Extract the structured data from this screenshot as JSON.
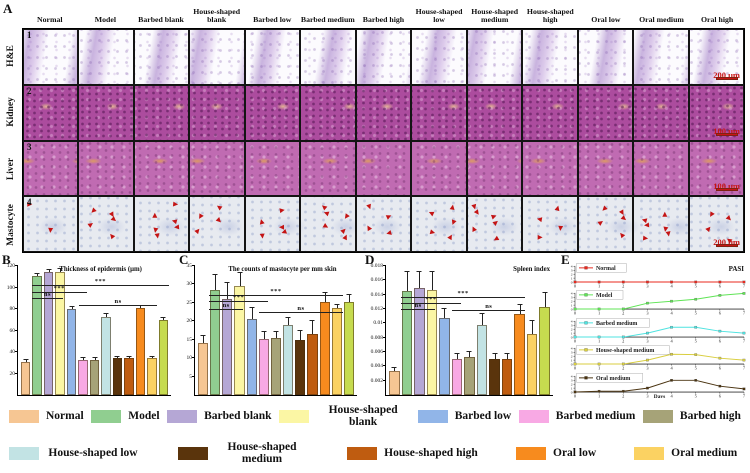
{
  "panelA": {
    "label": "A",
    "columns": [
      "Normal",
      "Model",
      "Barbed blank",
      "House-shaped blank",
      "Barbed low",
      "Barbed medium",
      "Barbed high",
      "House-shaped low",
      "House-shaped medium",
      "House-shaped high",
      "Oral low",
      "Oral medium",
      "Oral high"
    ],
    "rows": [
      {
        "number": "1",
        "label": "H&E",
        "scale_bar": "200 μm",
        "stain": "he"
      },
      {
        "number": "2",
        "label": "Kidney",
        "scale_bar": "100 μm",
        "stain": "kidney"
      },
      {
        "number": "3",
        "label": "Liver",
        "scale_bar": "100 μm",
        "stain": "liver"
      },
      {
        "number": "4",
        "label": "Mastocyte",
        "scale_bar": "200 μm",
        "stain": "mastocyte"
      }
    ]
  },
  "groups": [
    {
      "label": "Normal",
      "color": "#F6C693"
    },
    {
      "label": "Model",
      "color": "#90CE90"
    },
    {
      "label": "Barbed blank",
      "color": "#B5A7D5"
    },
    {
      "label": "House-shaped blank",
      "color": "#FBF6A4"
    },
    {
      "label": "Barbed low",
      "color": "#91B5E8"
    },
    {
      "label": "Barbed medium",
      "color": "#F8A9E4"
    },
    {
      "label": "Barbed high",
      "color": "#A6A378"
    },
    {
      "label": "House-shaped low",
      "color": "#C2E3E4"
    },
    {
      "label": "House-shaped medium",
      "color": "#5A340C"
    },
    {
      "label": "House-shaped high",
      "color": "#BF5C10"
    },
    {
      "label": "Oral low",
      "color": "#F78B1E"
    },
    {
      "label": "Oral medium",
      "color": "#FBD262"
    },
    {
      "label": "Oral high",
      "color": "#C6DB4F"
    }
  ],
  "chart_data": [
    {
      "panel": "B",
      "type": "bar",
      "title": "Thickness of epidermis (μm)",
      "categories": [
        "Normal",
        "Model",
        "Barbed blank",
        "House-shaped blank",
        "Barbed low",
        "Barbed medium",
        "Barbed high",
        "House-shaped low",
        "House-shaped medium",
        "House-shaped high",
        "Oral low",
        "Oral medium",
        "Oral high"
      ],
      "values": [
        31,
        111,
        114,
        114,
        80,
        33,
        33,
        73,
        34,
        34,
        81,
        34,
        70
      ],
      "errors": [
        1.5,
        2,
        2,
        3,
        1.5,
        1.5,
        1.5,
        2,
        1.5,
        1.5,
        2,
        1.5,
        1.5
      ],
      "ylim": [
        0,
        120
      ],
      "yticks": [
        "20",
        "40",
        "60",
        "80",
        "100",
        "120"
      ],
      "significance": [
        {
          "label": "***",
          "from": 2,
          "to": 13,
          "at": 101
        },
        {
          "label": "***",
          "from": 2,
          "to": 6,
          "at": 95
        },
        {
          "label": "ns",
          "from": 2,
          "to": 4,
          "at": 89
        },
        {
          "label": "ns",
          "from": 6,
          "to": 12,
          "at": 83
        }
      ]
    },
    {
      "panel": "C",
      "type": "bar",
      "title": "The counts of mastocyte per mm skin",
      "categories": [
        "Normal",
        "Model",
        "Barbed blank",
        "House-shaped blank",
        "Barbed low",
        "Barbed medium",
        "Barbed high",
        "House-shaped low",
        "House-shaped medium",
        "House-shaped high",
        "Oral low",
        "Oral medium",
        "Oral high"
      ],
      "values": [
        14,
        28.5,
        26,
        29.5,
        20.5,
        15.2,
        15.5,
        19,
        15,
        16.5,
        25.2,
        23.5,
        25.2
      ],
      "errors": [
        2,
        4,
        4.5,
        3.5,
        3,
        2,
        1.5,
        2,
        2.5,
        3.5,
        2.5,
        1,
        2
      ],
      "ylim": [
        0,
        35
      ],
      "yticks": [
        "5",
        "10",
        "15",
        "20",
        "25",
        "30",
        "35"
      ],
      "significance": [
        {
          "label": "***",
          "from": 2,
          "to": 12,
          "at": 27
        },
        {
          "label": "***",
          "from": 2,
          "to": 6,
          "at": 25.2
        },
        {
          "label": "ns",
          "from": 2,
          "to": 4,
          "at": 23.2
        },
        {
          "label": "ns",
          "from": 6,
          "to": 12,
          "at": 22.3
        }
      ]
    },
    {
      "panel": "D",
      "type": "bar",
      "title": "Spleen index",
      "title_align": "right",
      "categories": [
        "Normal",
        "Model",
        "Barbed blank",
        "House-shaped blank",
        "Barbed low",
        "Barbed medium",
        "Barbed high",
        "House-shaped low",
        "House-shaped medium",
        "House-shaped high",
        "Oral low",
        "Oral medium",
        "Oral high"
      ],
      "values": [
        0.0033,
        0.0145,
        0.015,
        0.0147,
        0.0108,
        0.005,
        0.0053,
        0.0098,
        0.005,
        0.005,
        0.0113,
        0.0085,
        0.0123
      ],
      "errors": [
        0.0005,
        0.0027,
        0.0022,
        0.0025,
        0.0012,
        0.0007,
        0.0007,
        0.0015,
        0.0007,
        0.0007,
        0.0012,
        0.0018,
        0.002
      ],
      "ylim": [
        0,
        0.018
      ],
      "yticks": [
        "0.002",
        "0.004",
        "0.006",
        "0.008",
        "0.01",
        "0.012",
        "0.014",
        "0.016",
        "0.018"
      ],
      "significance": [
        {
          "label": "***",
          "from": 2,
          "to": 11,
          "at": 0.0135
        },
        {
          "label": "***",
          "from": 2,
          "to": 6,
          "at": 0.0127
        },
        {
          "label": "ns",
          "from": 2,
          "to": 4,
          "at": 0.0119
        },
        {
          "label": "ns",
          "from": 6,
          "to": 11,
          "at": 0.0117
        }
      ]
    },
    {
      "panel": "E",
      "type": "line",
      "layout": "small-multiples",
      "ylabel_annotation": "PASI",
      "xlabel": "Days",
      "x": [
        0,
        1,
        2,
        3,
        4,
        5,
        6,
        7
      ],
      "ylim": [
        0,
        4
      ],
      "series": [
        {
          "name": "Normal",
          "color": "#E8281E",
          "values": [
            0,
            0,
            0,
            0,
            0,
            0,
            0,
            0
          ]
        },
        {
          "name": "Model",
          "color": "#5FE455",
          "values": [
            0,
            0,
            0,
            1.5,
            2,
            2.5,
            3.5,
            4
          ]
        },
        {
          "name": "Barbed medium",
          "color": "#4FE3E0",
          "values": [
            0,
            0,
            0,
            1,
            2.5,
            2.5,
            1.5,
            1
          ]
        },
        {
          "name": "House-shaped medium",
          "color": "#D9CE3F",
          "values": [
            0,
            0,
            0,
            1,
            2.5,
            2.4,
            1.5,
            1
          ]
        },
        {
          "name": "Oral medium",
          "color": "#4A3310",
          "values": [
            0,
            0.2,
            0.2,
            1,
            3,
            3,
            1.5,
            0.8
          ]
        }
      ]
    }
  ],
  "legend": {
    "row1_indices": [
      0,
      1,
      2,
      3,
      4,
      5,
      6
    ],
    "row2_indices": [
      7,
      8,
      9,
      10,
      11,
      12
    ]
  },
  "scalebar_color": "#C81414"
}
